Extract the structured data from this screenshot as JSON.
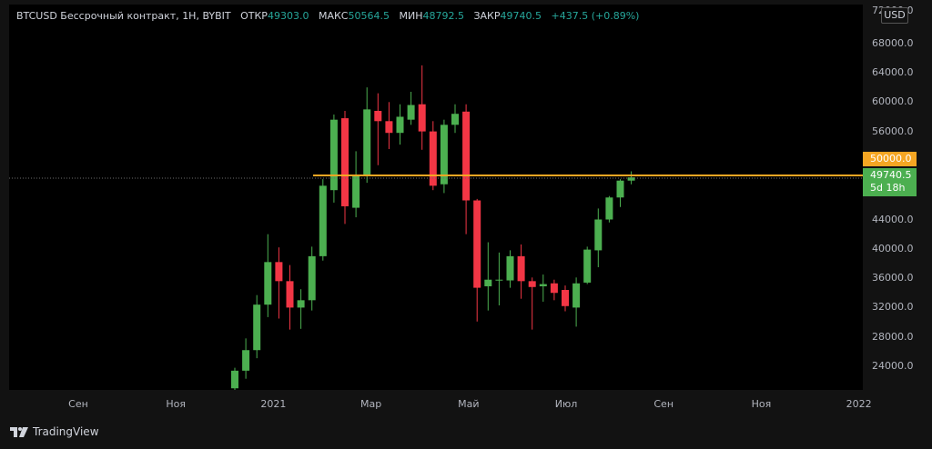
{
  "legend": {
    "symbol": "BTCUSD Бессрочный контракт, 1Н, BYBIT",
    "open_label": "ОТКР",
    "open": "49303.0",
    "high_label": "МАКС",
    "high": "50564.5",
    "low_label": "МИН",
    "low": "48792.5",
    "close_label": "ЗАКР",
    "close": "49740.5",
    "change": "+437.5 (+0.89%)"
  },
  "price_axis": {
    "currency": "USD",
    "top_partial": "72000.0"
  },
  "price_tags": {
    "level": "50000.0",
    "last": "49740.5",
    "countdown": "5d 18h"
  },
  "footer": {
    "brand": "TradingView"
  },
  "colors": {
    "up": "#4caf50",
    "down": "#f23645",
    "level_line": "#f5a623",
    "background": "#000000",
    "panel": "#121212",
    "axis_text": "#b2b5be"
  },
  "chart_data": {
    "type": "candlestick",
    "title": "",
    "ylim": [
      21000,
      73000
    ],
    "yticks": [
      "24000.0",
      "28000.0",
      "32000.0",
      "36000.0",
      "40000.0",
      "44000.0",
      "48000.0",
      "52000.0",
      "56000.0",
      "60000.0",
      "64000.0",
      "68000.0"
    ],
    "xticks": [
      "Сен",
      "Ноя",
      "2021",
      "Мар",
      "Май",
      "Июл",
      "Сен",
      "Ноя",
      "2022"
    ],
    "horizontal_level": 50000,
    "candles": [
      {
        "open": 21000,
        "high": 23800,
        "low": 20500,
        "close": 23400
      },
      {
        "open": 23400,
        "high": 27800,
        "low": 22300,
        "close": 26200
      },
      {
        "open": 26200,
        "high": 33700,
        "low": 25100,
        "close": 32400
      },
      {
        "open": 32400,
        "high": 42000,
        "low": 30700,
        "close": 38200
      },
      {
        "open": 38200,
        "high": 40200,
        "low": 30500,
        "close": 35600
      },
      {
        "open": 35600,
        "high": 37800,
        "low": 29000,
        "close": 32000
      },
      {
        "open": 32000,
        "high": 34500,
        "low": 29100,
        "close": 33000
      },
      {
        "open": 33000,
        "high": 40300,
        "low": 31600,
        "close": 39000
      },
      {
        "open": 39000,
        "high": 49500,
        "low": 38400,
        "close": 48600
      },
      {
        "open": 48000,
        "high": 58300,
        "low": 46300,
        "close": 57600
      },
      {
        "open": 57800,
        "high": 58800,
        "low": 43400,
        "close": 45800
      },
      {
        "open": 45600,
        "high": 53300,
        "low": 44300,
        "close": 50000
      },
      {
        "open": 50000,
        "high": 62000,
        "low": 49000,
        "close": 59000
      },
      {
        "open": 58800,
        "high": 61200,
        "low": 51400,
        "close": 57400
      },
      {
        "open": 57400,
        "high": 60000,
        "low": 53600,
        "close": 55800
      },
      {
        "open": 55800,
        "high": 59700,
        "low": 54200,
        "close": 58000
      },
      {
        "open": 57600,
        "high": 61400,
        "low": 56900,
        "close": 59600
      },
      {
        "open": 59700,
        "high": 65000,
        "low": 53500,
        "close": 56000
      },
      {
        "open": 56000,
        "high": 57400,
        "low": 48000,
        "close": 48600
      },
      {
        "open": 48800,
        "high": 57600,
        "low": 47600,
        "close": 56900
      },
      {
        "open": 56900,
        "high": 59700,
        "low": 55800,
        "close": 58400
      },
      {
        "open": 58700,
        "high": 59700,
        "low": 42000,
        "close": 46600
      },
      {
        "open": 46600,
        "high": 46800,
        "low": 30100,
        "close": 34700
      },
      {
        "open": 34900,
        "high": 40900,
        "low": 31600,
        "close": 35800
      },
      {
        "open": 35800,
        "high": 39500,
        "low": 32300,
        "close": 35800
      },
      {
        "open": 35700,
        "high": 39800,
        "low": 34700,
        "close": 39000
      },
      {
        "open": 39000,
        "high": 40600,
        "low": 33200,
        "close": 35600
      },
      {
        "open": 35600,
        "high": 36100,
        "low": 29000,
        "close": 34800
      },
      {
        "open": 34900,
        "high": 36500,
        "low": 32800,
        "close": 35200
      },
      {
        "open": 35300,
        "high": 35800,
        "low": 33000,
        "close": 34000
      },
      {
        "open": 34400,
        "high": 35000,
        "low": 31500,
        "close": 32200
      },
      {
        "open": 32000,
        "high": 36100,
        "low": 29400,
        "close": 35300
      },
      {
        "open": 35400,
        "high": 40300,
        "low": 35200,
        "close": 39900
      },
      {
        "open": 39800,
        "high": 45500,
        "low": 37500,
        "close": 44000
      },
      {
        "open": 44000,
        "high": 47200,
        "low": 43600,
        "close": 47000
      },
      {
        "open": 47000,
        "high": 49500,
        "low": 45700,
        "close": 49300
      },
      {
        "open": 49300,
        "high": 50564.5,
        "low": 48792.5,
        "close": 49740.5
      }
    ]
  }
}
